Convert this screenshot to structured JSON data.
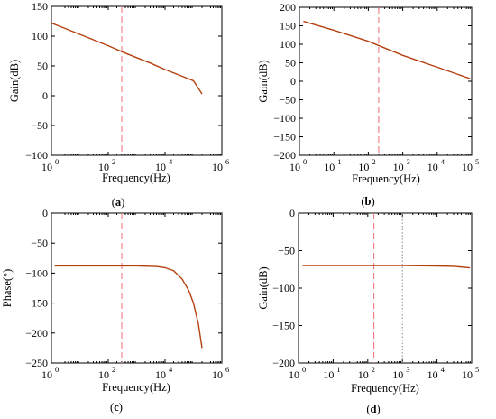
{
  "chart_data": [
    {
      "type": "line",
      "caption": "(a)",
      "xlabel": "Frequency(Hz)",
      "ylabel": "Gain(dB)",
      "xscale": "log",
      "xlim": [
        1,
        1000000
      ],
      "ylim": [
        -100,
        150
      ],
      "xticks": [
        1,
        100,
        10000,
        1000000
      ],
      "yticks": [
        -100,
        -50,
        0,
        50,
        100,
        150
      ],
      "series": [
        {
          "x": [
            1,
            3,
            10,
            30,
            100,
            300,
            1000,
            3000,
            10000,
            30000,
            100000,
            200000
          ],
          "y": [
            122,
            113,
            103,
            94,
            84,
            74,
            64,
            55,
            44,
            35,
            25,
            3
          ]
        }
      ],
      "markers": [
        {
          "x": 300,
          "style": "dashed-red"
        }
      ]
    },
    {
      "type": "line",
      "caption": "(b)",
      "xlabel": "Frequency(Hz)",
      "ylabel": "Gain(dB)",
      "xscale": "log",
      "xlim": [
        1,
        100000
      ],
      "ylim": [
        -200,
        200
      ],
      "xticks": [
        1,
        10,
        100,
        1000,
        10000,
        100000
      ],
      "yticks": [
        -200,
        -150,
        -100,
        -50,
        0,
        50,
        100,
        150,
        200
      ],
      "series": [
        {
          "x": [
            1.3,
            10,
            100,
            1000,
            10000,
            90000
          ],
          "y": [
            162,
            138,
            108,
            70,
            38,
            7
          ]
        }
      ],
      "markers": [
        {
          "x": 200,
          "style": "dashed-red"
        }
      ]
    },
    {
      "type": "line",
      "caption": "(c)",
      "xlabel": "Frequency(Hz)",
      "ylabel": "Phase(°)",
      "xscale": "log",
      "xlim": [
        1,
        1000000
      ],
      "ylim": [
        -250,
        0
      ],
      "xticks": [
        1,
        100,
        10000,
        1000000
      ],
      "yticks": [
        -250,
        -200,
        -150,
        -100,
        -50,
        0
      ],
      "series": [
        {
          "x": [
            1.3,
            10,
            100,
            1000,
            5000,
            10000,
            20000,
            40000,
            70000,
            100000,
            150000,
            200000
          ],
          "y": [
            -88,
            -88,
            -88,
            -88,
            -89,
            -91,
            -96,
            -110,
            -130,
            -150,
            -185,
            -225
          ]
        }
      ],
      "markers": [
        {
          "x": 300,
          "style": "dashed-red"
        }
      ]
    },
    {
      "type": "line",
      "caption": "(d)",
      "xlabel": "Frequency(Hz)",
      "ylabel": "Gain(dB)",
      "xscale": "log",
      "xlim": [
        1,
        100000
      ],
      "ylim": [
        -200,
        0
      ],
      "xticks": [
        1,
        10,
        100,
        1000,
        10000,
        100000
      ],
      "yticks": [
        -200,
        -150,
        -100,
        -50,
        0
      ],
      "series": [
        {
          "x": [
            1.3,
            10,
            100,
            1000,
            10000,
            30000,
            90000
          ],
          "y": [
            -70,
            -70,
            -70,
            -70,
            -70.5,
            -71,
            -73
          ]
        }
      ],
      "markers": [
        {
          "x": 150,
          "style": "dashed-red"
        },
        {
          "x": 1000,
          "style": "dotted-gray"
        }
      ]
    }
  ]
}
